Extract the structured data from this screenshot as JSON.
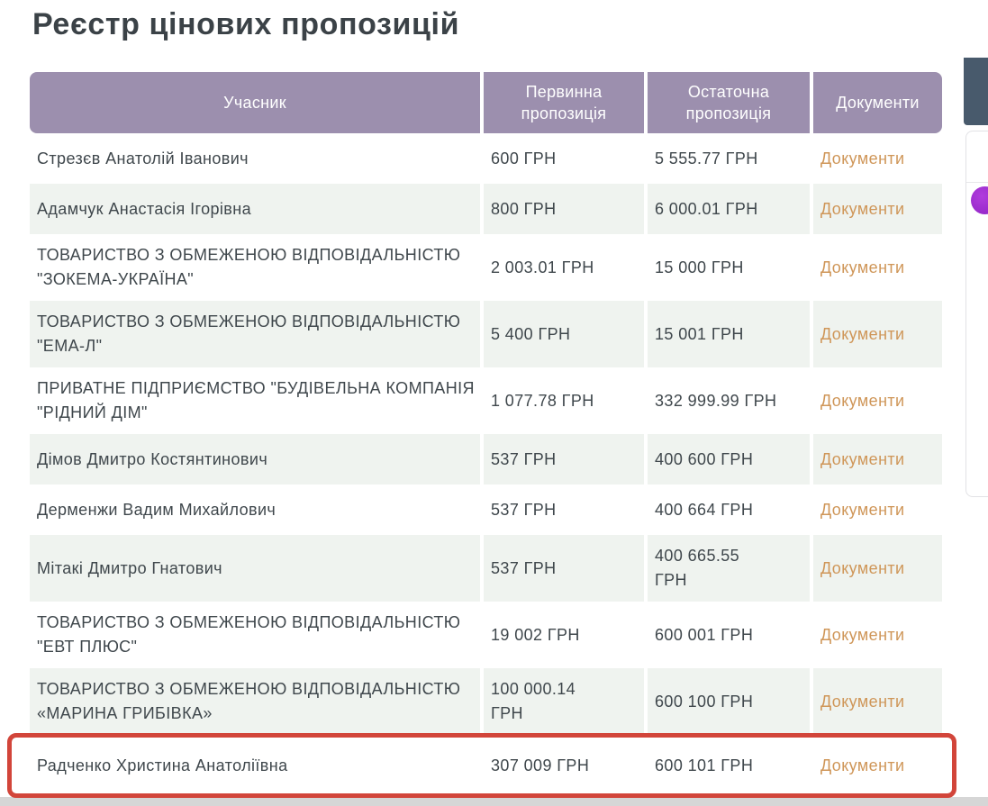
{
  "page": {
    "title": "Реєстр цінових пропозицій"
  },
  "table": {
    "headers": {
      "participant": "Учасник",
      "initial": "Первинна\nпропозиція",
      "final": "Остаточна\nпропозиція",
      "documents": "Документи"
    },
    "rows": [
      {
        "participant": "Стрезєв Анатолій Іванович",
        "initial": "600 ГРН",
        "final": "5 555.77 ГРН",
        "documents": "Документи",
        "highlighted": false
      },
      {
        "participant": "Адамчук Анастасія Ігорівна",
        "initial": "800 ГРН",
        "final": "6 000.01 ГРН",
        "documents": "Документи",
        "highlighted": false
      },
      {
        "participant": "ТОВАРИСТВО З ОБМЕЖЕНОЮ ВІДПОВІДАЛЬНІСТЮ \"ЗОКЕМА-УКРАЇНА\"",
        "initial": "2 003.01 ГРН",
        "final": "15 000 ГРН",
        "documents": "Документи",
        "highlighted": false
      },
      {
        "participant": "ТОВАРИСТВО З ОБМЕЖЕНОЮ ВІДПОВІДАЛЬНІСТЮ \"ЕМА-Л\"",
        "initial": "5 400 ГРН",
        "final": "15 001 ГРН",
        "documents": "Документи",
        "highlighted": false
      },
      {
        "participant": "ПРИВАТНЕ ПІДПРИЄМСТВО \"БУДІВЕЛЬНА КОМПАНІЯ \"РІДНИЙ ДІМ\"",
        "initial": "1 077.78 ГРН",
        "final": "332 999.99 ГРН",
        "documents": "Документи",
        "highlighted": false
      },
      {
        "participant": "Дімов Дмитро Костянтинович",
        "initial": "537 ГРН",
        "final": "400 600 ГРН",
        "documents": "Документи",
        "highlighted": false
      },
      {
        "participant": "Дерменжи Вадим Михайлович",
        "initial": "537 ГРН",
        "final": "400 664 ГРН",
        "documents": "Документи",
        "highlighted": false
      },
      {
        "participant": "Мітакі Дмитро Гнатович",
        "initial": "537 ГРН",
        "final": "400 665.55\nГРН",
        "documents": "Документи",
        "highlighted": false
      },
      {
        "participant": "ТОВАРИСТВО З ОБМЕЖЕНОЮ ВІДПОВІДАЛЬНІСТЮ \"ЕВТ ПЛЮС\"",
        "initial": "19 002 ГРН",
        "final": "600 001 ГРН",
        "documents": "Документи",
        "highlighted": false
      },
      {
        "participant": "ТОВАРИСТВО З ОБМЕЖЕНОЮ ВІДПОВІДАЛЬНІСТЮ «МАРИНА ГРИБІВКА»",
        "initial": "100 000.14\nГРН",
        "final": "600 100 ГРН",
        "documents": "Документи",
        "highlighted": false
      },
      {
        "participant": "Радченко Христина Анатоліївна",
        "initial": "307 009 ГРН",
        "final": "600 101 ГРН",
        "documents": "Документи",
        "highlighted": true
      }
    ]
  },
  "colors": {
    "header_bg": "#9c8fae",
    "row_alt_bg": "#eff3ef",
    "link_color": "#cf9658",
    "highlight_border": "#d2453a",
    "dark_panel": "#485a6c",
    "circle_purple": "#8f22c4"
  }
}
